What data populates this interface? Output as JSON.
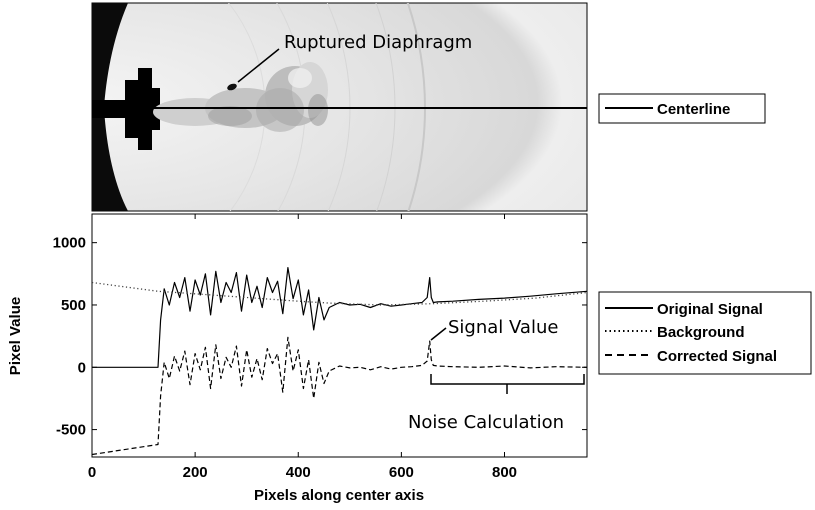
{
  "image_panel": {
    "annotation_diaphragm": "Ruptured Diaphragm",
    "legend": {
      "centerline_label": "Centerline"
    }
  },
  "chart_data": {
    "type": "line",
    "title": "",
    "xlabel": "Pixels along center axis",
    "ylabel": "Pixel Value",
    "xlim": [
      0,
      960
    ],
    "ylim": [
      -720,
      1230
    ],
    "xticks": [
      0,
      200,
      400,
      600,
      800
    ],
    "yticks": [
      -500,
      0,
      500,
      1000
    ],
    "grid": false,
    "legend_position": "right, outside plot",
    "series": [
      {
        "name": "Original Signal",
        "style": "solid",
        "x": [
          0,
          128,
          133,
          140,
          150,
          160,
          170,
          180,
          190,
          200,
          210,
          220,
          230,
          240,
          250,
          260,
          270,
          280,
          290,
          300,
          310,
          320,
          330,
          340,
          350,
          360,
          370,
          380,
          390,
          400,
          410,
          420,
          430,
          440,
          450,
          460,
          480,
          500,
          520,
          540,
          560,
          580,
          600,
          620,
          640,
          650,
          655,
          658,
          662,
          670,
          700,
          750,
          800,
          850,
          900,
          960
        ],
        "y": [
          0,
          0,
          380,
          630,
          500,
          680,
          560,
          720,
          450,
          700,
          580,
          750,
          420,
          770,
          520,
          680,
          600,
          760,
          450,
          740,
          520,
          650,
          480,
          720,
          600,
          690,
          430,
          800,
          550,
          700,
          420,
          620,
          300,
          560,
          380,
          480,
          520,
          500,
          505,
          480,
          510,
          490,
          500,
          510,
          520,
          560,
          720,
          560,
          520,
          525,
          530,
          545,
          555,
          570,
          590,
          610
        ]
      },
      {
        "name": "Background",
        "style": "dotted",
        "x": [
          0,
          128,
          200,
          300,
          400,
          460,
          560,
          660,
          760,
          860,
          960
        ],
        "y": [
          680,
          610,
          590,
          560,
          530,
          515,
          500,
          510,
          530,
          555,
          600
        ]
      },
      {
        "name": "Corrected Signal",
        "style": "dashed",
        "x": [
          0,
          128,
          133,
          140,
          150,
          160,
          170,
          180,
          190,
          200,
          210,
          220,
          230,
          240,
          250,
          260,
          270,
          280,
          290,
          300,
          310,
          320,
          330,
          340,
          350,
          360,
          370,
          380,
          390,
          400,
          410,
          420,
          430,
          440,
          450,
          460,
          480,
          500,
          520,
          540,
          560,
          580,
          600,
          620,
          640,
          650,
          655,
          658,
          662,
          670,
          700,
          750,
          800,
          850,
          900,
          960
        ],
        "y": [
          -700,
          -620,
          -230,
          40,
          -90,
          90,
          -30,
          130,
          -140,
          110,
          -20,
          160,
          -170,
          180,
          -90,
          80,
          0,
          170,
          -150,
          140,
          -80,
          70,
          -100,
          150,
          30,
          110,
          -200,
          240,
          -30,
          140,
          -170,
          60,
          -250,
          40,
          -130,
          -30,
          10,
          -5,
          0,
          -20,
          5,
          -15,
          0,
          5,
          15,
          50,
          210,
          60,
          15,
          10,
          5,
          0,
          10,
          -5,
          5,
          0
        ]
      }
    ],
    "annotations": [
      {
        "text": "Signal Value",
        "x": 660,
        "y": 240
      },
      {
        "text": "Noise Calculation",
        "x_range": [
          665,
          960
        ],
        "y": -180
      }
    ]
  }
}
